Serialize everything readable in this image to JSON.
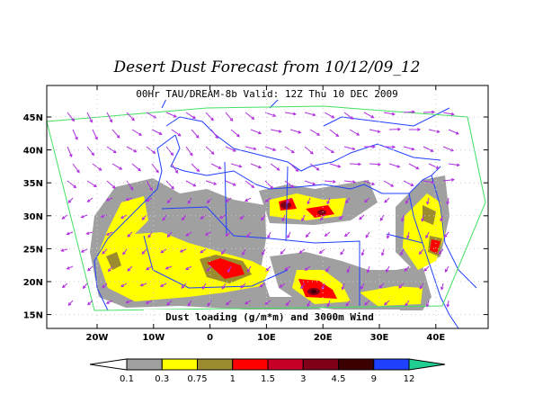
{
  "title": "Desert Dust Forecast from 10/12/09_12",
  "subtitle": "00Hr TAU/DREAM-8b Valid: 12Z Thu 10 DEC 2009",
  "caption": "Dust loading (g/m*m) and 3000m Wind",
  "lat_labels": [
    "45N",
    "40N",
    "35N",
    "30N",
    "25N",
    "20N",
    "15N"
  ],
  "lon_labels": [
    "20W",
    "10W",
    "0",
    "10E",
    "20E",
    "30E",
    "40E"
  ],
  "colorbar": {
    "labels": [
      "0.1",
      "0.3",
      "0.75",
      "1",
      "1.5",
      "3",
      "4.5",
      "9",
      "12"
    ],
    "colors": [
      "#ffffff",
      "#a0a0a0",
      "#ffff00",
      "#9c8c30",
      "#ff0000",
      "#c80028",
      "#800018",
      "#3c0000",
      "#2040ff",
      "#8020e0",
      "#20d090"
    ]
  }
}
